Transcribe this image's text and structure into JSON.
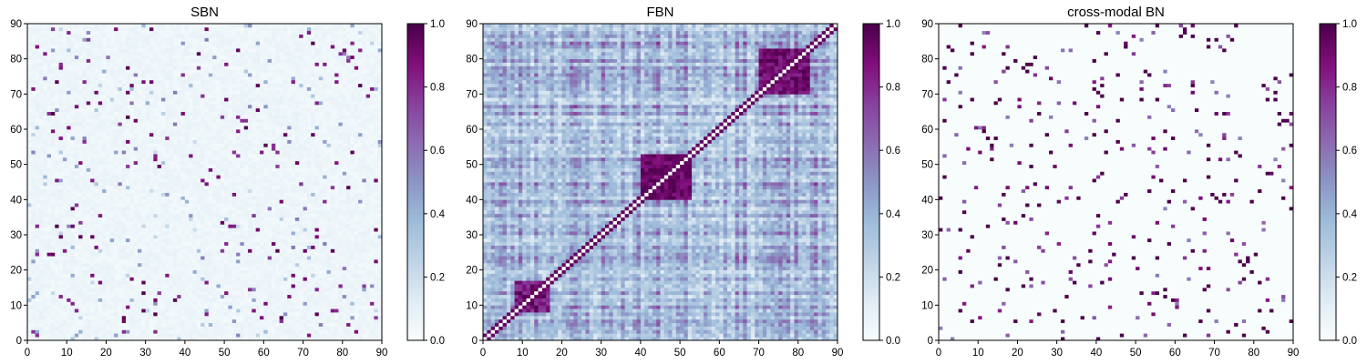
{
  "chart_data": [
    {
      "type": "heatmap",
      "title": "SBN",
      "xlim": [
        0,
        90
      ],
      "ylim": [
        0,
        90
      ],
      "x_ticks": [
        "0",
        "10",
        "20",
        "30",
        "40",
        "50",
        "60",
        "70",
        "80",
        "90"
      ],
      "y_ticks": [
        "0",
        "10",
        "20",
        "30",
        "40",
        "50",
        "60",
        "70",
        "80",
        "90"
      ],
      "colorbar": {
        "range": [
          0.0,
          1.0
        ],
        "ticks": [
          "0.0",
          "0.2",
          "0.4",
          "0.6",
          "0.8",
          "1.0"
        ]
      },
      "colormap": [
        "#f7fcfd",
        "#e0ecf4",
        "#bfd3e6",
        "#9ebcda",
        "#8c96c6",
        "#8c6bb1",
        "#88419d",
        "#810f7c",
        "#4d004b"
      ],
      "grid": false,
      "pattern": "sparse",
      "seed": 11
    },
    {
      "type": "heatmap",
      "title": "FBN",
      "xlim": [
        0,
        90
      ],
      "ylim": [
        0,
        90
      ],
      "x_ticks": [
        "0",
        "10",
        "20",
        "30",
        "40",
        "50",
        "60",
        "70",
        "80",
        "90"
      ],
      "y_ticks": [
        "0",
        "10",
        "20",
        "30",
        "40",
        "50",
        "60",
        "70",
        "80",
        "90"
      ],
      "colorbar": {
        "range": [
          0.0,
          1.0
        ],
        "ticks": [
          "0.0",
          "0.2",
          "0.4",
          "0.6",
          "0.8",
          "1.0"
        ]
      },
      "colormap": [
        "#f7fcfd",
        "#e0ecf4",
        "#bfd3e6",
        "#9ebcda",
        "#8c96c6",
        "#8c6bb1",
        "#88419d",
        "#810f7c",
        "#4d004b"
      ],
      "grid": false,
      "pattern": "dense",
      "seed": 23
    },
    {
      "type": "heatmap",
      "title": "cross-modal BN",
      "xlim": [
        0,
        90
      ],
      "ylim": [
        0,
        90
      ],
      "x_ticks": [
        "0",
        "10",
        "20",
        "30",
        "40",
        "50",
        "60",
        "70",
        "80",
        "90"
      ],
      "y_ticks": [
        "0",
        "10",
        "20",
        "30",
        "40",
        "50",
        "60",
        "70",
        "80",
        "90"
      ],
      "colorbar": {
        "range": [
          0.0,
          1.0
        ],
        "ticks": [
          "0.0",
          "0.2",
          "0.4",
          "0.6",
          "0.8",
          "1.0"
        ]
      },
      "colormap": [
        "#f7fcfd",
        "#e0ecf4",
        "#bfd3e6",
        "#9ebcda",
        "#8c96c6",
        "#8c6bb1",
        "#88419d",
        "#810f7c",
        "#4d004b"
      ],
      "grid": false,
      "pattern": "binary",
      "seed": 37
    }
  ]
}
